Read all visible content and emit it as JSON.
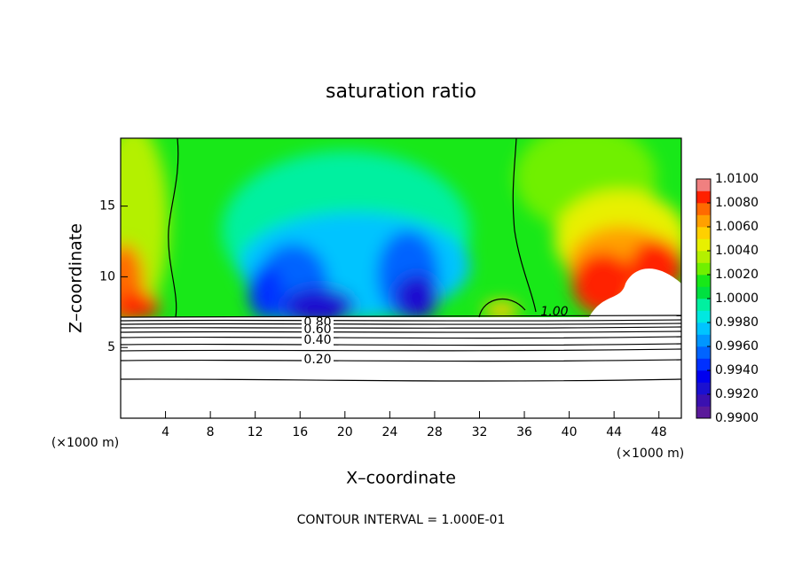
{
  "chart_data": {
    "type": "contour",
    "title": "saturation ratio",
    "xlabel": "X–coordinate",
    "ylabel": "Z–coordinate",
    "x_unit_label": "(×1000 m)",
    "footer": "CONTOUR INTERVAL = 1.000E-01",
    "xlim": [
      0,
      50
    ],
    "xticks": [
      4,
      8,
      12,
      16,
      20,
      24,
      28,
      32,
      36,
      40,
      44,
      48
    ],
    "ylim": [
      0,
      19.8
    ],
    "yticks": [
      5,
      10,
      15
    ],
    "contour_labels": [
      "1.00",
      "0.80",
      "0.60",
      "0.40",
      "0.20"
    ],
    "clim": [
      0.99,
      1.01
    ],
    "cticks": [
      {
        "value": 1.01,
        "label": "1.0100"
      },
      {
        "value": 1.008,
        "label": "1.0080"
      },
      {
        "value": 1.006,
        "label": "1.0060"
      },
      {
        "value": 1.004,
        "label": "1.0040"
      },
      {
        "value": 1.002,
        "label": "1.0020"
      },
      {
        "value": 1.0,
        "label": "1.0000"
      },
      {
        "value": 0.998,
        "label": "0.9980"
      },
      {
        "value": 0.996,
        "label": "0.9960"
      },
      {
        "value": 0.994,
        "label": "0.9940"
      },
      {
        "value": 0.992,
        "label": "0.9920"
      },
      {
        "value": 0.99,
        "label": "0.9900"
      }
    ],
    "colors": [
      "#5a1a9a",
      "#3a10b0",
      "#1a10d0",
      "#0000ee",
      "#0030ff",
      "#0064ff",
      "#0096ff",
      "#00c4ff",
      "#00e8e0",
      "#00f0a0",
      "#00e040",
      "#18e818",
      "#70f000",
      "#b4f000",
      "#e8f000",
      "#ffd000",
      "#ffa000",
      "#ff6a00",
      "#ff2000",
      "#f08080"
    ]
  }
}
